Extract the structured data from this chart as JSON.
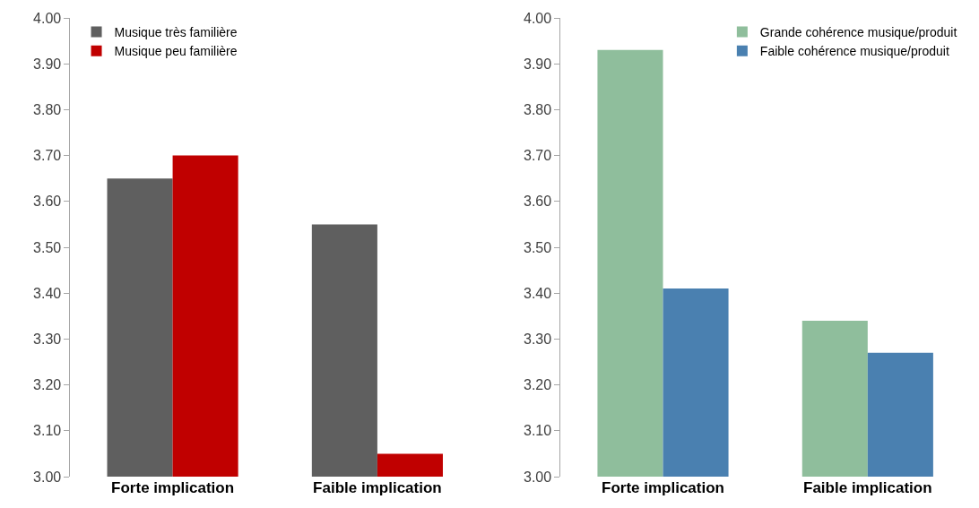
{
  "chart_data": [
    {
      "type": "bar",
      "categories": [
        "Forte implication",
        "Faible implication"
      ],
      "series": [
        {
          "name": "Musique très familière",
          "color": "#5f5f5f",
          "values": [
            3.65,
            3.55
          ]
        },
        {
          "name": "Musique peu familière",
          "color": "#c00000",
          "values": [
            3.7,
            3.05
          ]
        }
      ],
      "ylim": [
        3.0,
        4.0
      ],
      "yticks": [
        {
          "value": 3.0,
          "label": "3.00"
        },
        {
          "value": 3.1,
          "label": "3.10"
        },
        {
          "value": 3.2,
          "label": "3.20"
        },
        {
          "value": 3.3,
          "label": "3.30"
        },
        {
          "value": 3.4,
          "label": "3.40"
        },
        {
          "value": 3.5,
          "label": "3.50"
        },
        {
          "value": 3.6,
          "label": "3.60"
        },
        {
          "value": 3.7,
          "label": "3.70"
        },
        {
          "value": 3.8,
          "label": "3.80"
        },
        {
          "value": 3.9,
          "label": "3.90"
        },
        {
          "value": 4.0,
          "label": "4.00"
        }
      ],
      "legend": "top left"
    },
    {
      "type": "bar",
      "categories": [
        "Forte implication",
        "Faible implication"
      ],
      "series": [
        {
          "name": "Grande cohérence musique/produit",
          "color": "#8fbe9c",
          "values": [
            3.93,
            3.34
          ]
        },
        {
          "name": "Faible cohérence musique/produit",
          "color": "#4a80b0",
          "values": [
            3.41,
            3.27
          ]
        }
      ],
      "ylim": [
        3.0,
        4.0
      ],
      "yticks": [
        {
          "value": 3.0,
          "label": "3.00"
        },
        {
          "value": 3.1,
          "label": "3.10"
        },
        {
          "value": 3.2,
          "label": "3.20"
        },
        {
          "value": 3.3,
          "label": "3.30"
        },
        {
          "value": 3.4,
          "label": "3.40"
        },
        {
          "value": 3.5,
          "label": "3.50"
        },
        {
          "value": 3.6,
          "label": "3.60"
        },
        {
          "value": 3.7,
          "label": "3.70"
        },
        {
          "value": 3.8,
          "label": "3.80"
        },
        {
          "value": 3.9,
          "label": "3.90"
        },
        {
          "value": 4.0,
          "label": "4.00"
        }
      ],
      "legend": "top right"
    }
  ]
}
